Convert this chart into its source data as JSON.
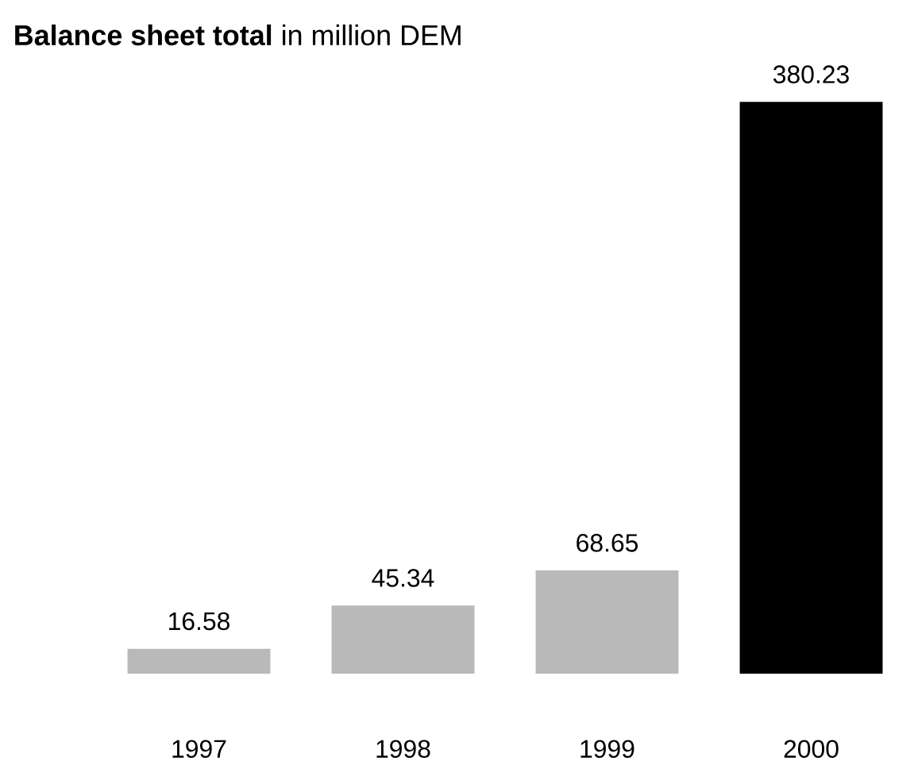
{
  "chart_data": {
    "type": "bar",
    "title": "**Balance sheet total** in million DEM",
    "categories": [
      "1997",
      "1998",
      "1999",
      "2000"
    ],
    "values": [
      16.58,
      45.34,
      68.65,
      380.23
    ],
    "colors": [
      "#b9b9b9",
      "#b9b9b9",
      "#b9b9b9",
      "#000000"
    ],
    "value_labels": [
      "16.58",
      "45.34",
      "68.65",
      "380.23"
    ]
  }
}
